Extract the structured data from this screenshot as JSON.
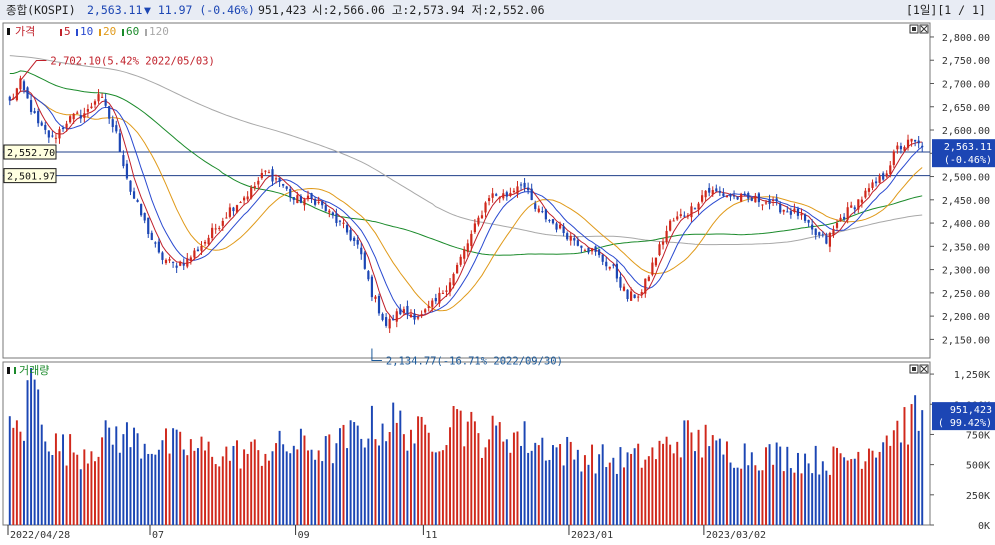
{
  "header": {
    "index_name": "종합(KOSPI)",
    "price": "2,563.11",
    "change": "▼ 11.97 (-0.46%)",
    "volume": "951,423",
    "ohl": "시:2,566.06 고:2,573.94 저:2,552.06",
    "period": "[1일][1 / 1]"
  },
  "legend": {
    "price_label": "가격",
    "ma": [
      "5",
      "10",
      "20",
      "60",
      "120"
    ],
    "volume_label": "거래량"
  },
  "colors": {
    "up": "#d0281c",
    "down": "#1c46b4",
    "ma5": "#c0202a",
    "ma10": "#2a4ad0",
    "ma20": "#e09a1a",
    "ma60": "#1a8a2a",
    "ma120": "#a8a8a8",
    "hline": "#1f3f8a",
    "highlight": "#1c46b4"
  },
  "annotations": {
    "high": "2,702.10(5.42% 2022/05/03)",
    "low": "2,134.77(-16.71% 2022/09/30)",
    "ref1": "2,552.70",
    "ref2": "2,501.97"
  },
  "price_box": [
    "2,563.11",
    "(-0.46%)"
  ],
  "volume_box": [
    "951,423",
    "( 99.42%)"
  ],
  "chart_data": {
    "type": "candlestick",
    "x_labels": [
      "2022/04/28",
      "07",
      "09",
      "11",
      "2023/01",
      "2023/03/02"
    ],
    "y_ticks": [
      "2,800.00",
      "2,750.00",
      "2,700.00",
      "2,650.00",
      "2,600.00",
      "2,550.00",
      "2,500.00",
      "2,450.00",
      "2,400.00",
      "2,350.00",
      "2,300.00",
      "2,250.00",
      "2,200.00",
      "2,150.00"
    ],
    "ylim": [
      2110,
      2830
    ],
    "volume_ticks": [
      "1,250K",
      "1,000K",
      "750K",
      "500K",
      "250K",
      "0K"
    ],
    "volume_ylim": [
      0,
      1350000
    ],
    "anchors": [
      [
        0,
        2660
      ],
      [
        3,
        2700
      ],
      [
        8,
        2610
      ],
      [
        12,
        2580
      ],
      [
        16,
        2620
      ],
      [
        22,
        2640
      ],
      [
        25,
        2680
      ],
      [
        30,
        2590
      ],
      [
        34,
        2470
      ],
      [
        38,
        2400
      ],
      [
        42,
        2330
      ],
      [
        46,
        2310
      ],
      [
        50,
        2320
      ],
      [
        56,
        2370
      ],
      [
        62,
        2430
      ],
      [
        68,
        2470
      ],
      [
        72,
        2510
      ],
      [
        76,
        2490
      ],
      [
        80,
        2450
      ],
      [
        86,
        2450
      ],
      [
        90,
        2420
      ],
      [
        94,
        2390
      ],
      [
        98,
        2350
      ],
      [
        102,
        2250
      ],
      [
        106,
        2180
      ],
      [
        110,
        2210
      ],
      [
        116,
        2200
      ],
      [
        120,
        2230
      ],
      [
        125,
        2290
      ],
      [
        131,
        2390
      ],
      [
        135,
        2460
      ],
      [
        140,
        2460
      ],
      [
        144,
        2490
      ],
      [
        148,
        2430
      ],
      [
        153,
        2400
      ],
      [
        158,
        2370
      ],
      [
        164,
        2340
      ],
      [
        170,
        2300
      ],
      [
        174,
        2240
      ],
      [
        178,
        2250
      ],
      [
        182,
        2330
      ],
      [
        186,
        2400
      ],
      [
        192,
        2430
      ],
      [
        196,
        2470
      ],
      [
        202,
        2460
      ],
      [
        208,
        2450
      ],
      [
        212,
        2450
      ],
      [
        218,
        2430
      ],
      [
        222,
        2420
      ],
      [
        226,
        2380
      ],
      [
        230,
        2360
      ],
      [
        234,
        2410
      ],
      [
        238,
        2440
      ],
      [
        242,
        2470
      ],
      [
        246,
        2500
      ],
      [
        250,
        2560
      ],
      [
        254,
        2575
      ],
      [
        257,
        2563
      ]
    ],
    "volume_anchors": [
      [
        0,
        800000
      ],
      [
        4,
        870000
      ],
      [
        6,
        1300000
      ],
      [
        12,
        700000
      ],
      [
        20,
        640000
      ],
      [
        30,
        800000
      ],
      [
        38,
        720000
      ],
      [
        50,
        680000
      ],
      [
        60,
        620000
      ],
      [
        70,
        640000
      ],
      [
        80,
        700000
      ],
      [
        90,
        660000
      ],
      [
        100,
        840000
      ],
      [
        108,
        900000
      ],
      [
        116,
        780000
      ],
      [
        122,
        820000
      ],
      [
        126,
        960000
      ],
      [
        132,
        760000
      ],
      [
        140,
        820000
      ],
      [
        148,
        720000
      ],
      [
        160,
        620000
      ],
      [
        170,
        560000
      ],
      [
        180,
        600000
      ],
      [
        190,
        780000
      ],
      [
        198,
        660000
      ],
      [
        210,
        620000
      ],
      [
        220,
        600000
      ],
      [
        230,
        560000
      ],
      [
        238,
        600000
      ],
      [
        244,
        720000
      ],
      [
        250,
        860000
      ],
      [
        257,
        951423
      ]
    ],
    "last_volume": 951423,
    "tall_volume": [
      [
        6,
        1300000
      ],
      [
        126,
        960000
      ],
      [
        115,
        900000
      ],
      [
        196,
        830000
      ]
    ]
  }
}
